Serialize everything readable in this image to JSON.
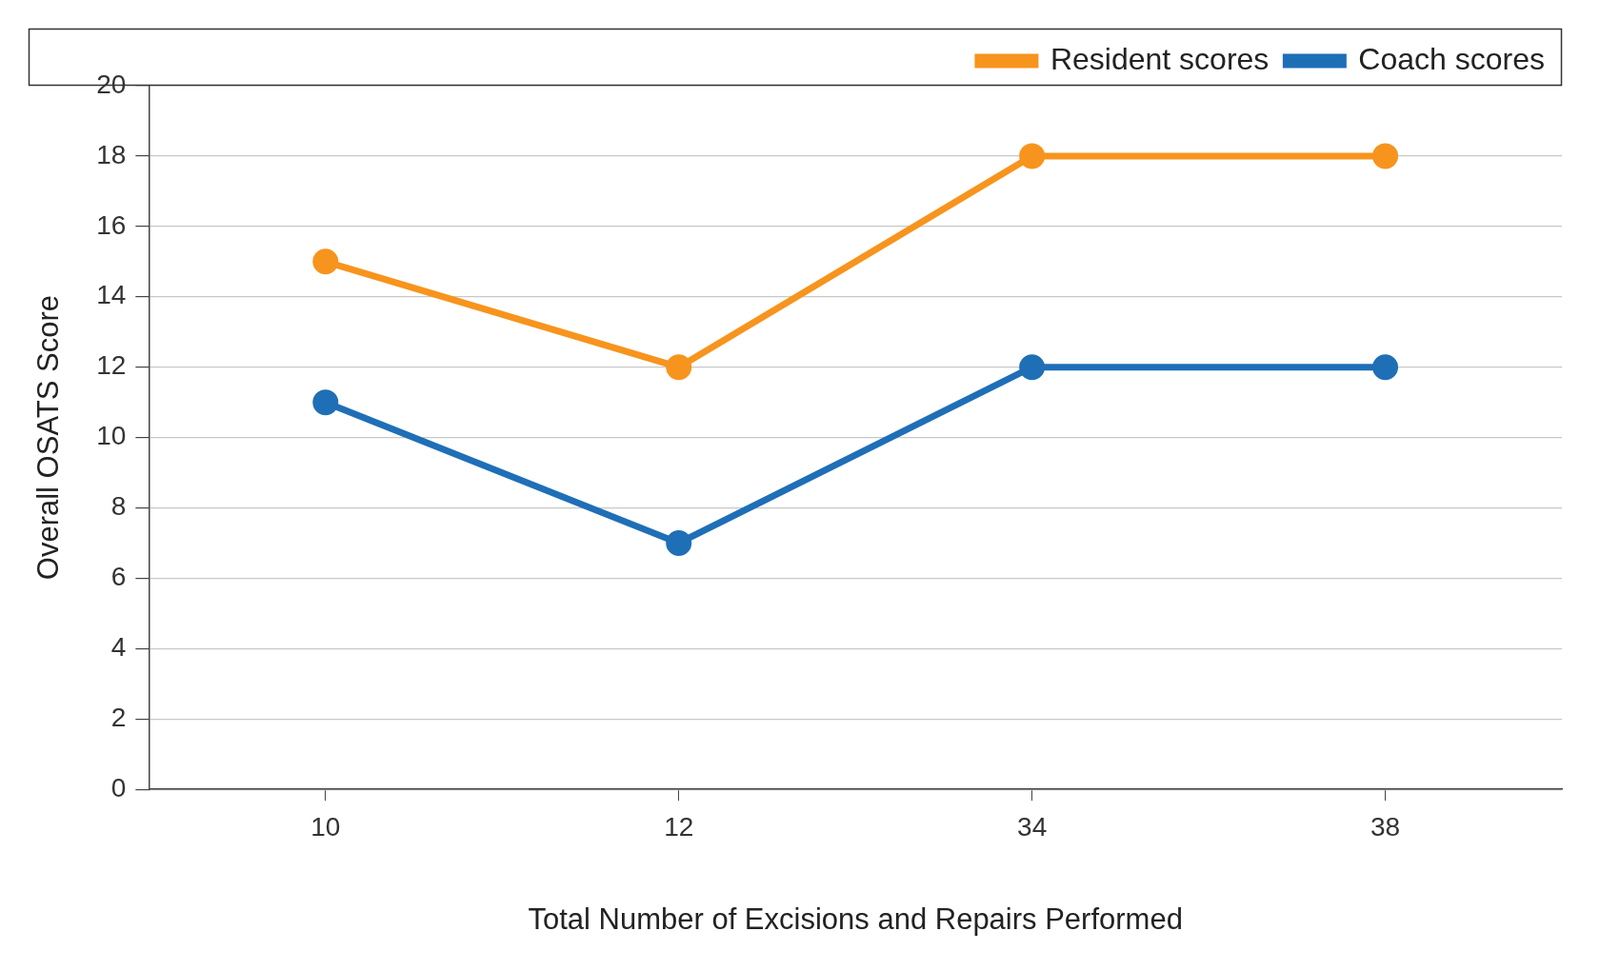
{
  "chart_data": {
    "type": "line",
    "x_label": "Total Number of Excisions and Repairs Performed",
    "y_label": "Overall OSATS Score",
    "categories": [
      "10",
      "12",
      "34",
      "38"
    ],
    "series": [
      {
        "name": "Resident scores",
        "color": "#f7941d",
        "values": [
          15,
          12,
          18,
          18
        ],
        "marker": "circle"
      },
      {
        "name": "Coach scores",
        "color": "#1f6fb7",
        "values": [
          11,
          7,
          12,
          12
        ],
        "marker": "circle"
      }
    ],
    "ylim": [
      0,
      20
    ],
    "yticks": [
      0,
      2,
      4,
      6,
      8,
      10,
      12,
      14,
      16,
      18,
      20
    ],
    "grid": true,
    "legend": "top-right"
  }
}
